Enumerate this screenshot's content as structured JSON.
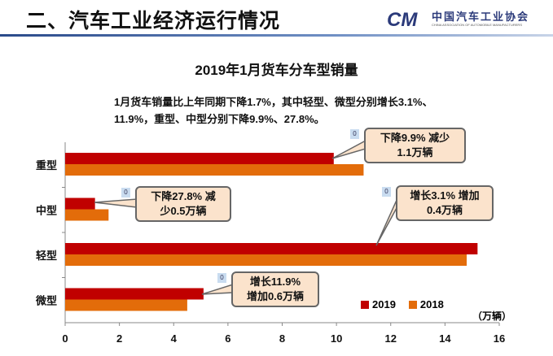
{
  "header": {
    "title": "二、汽车工业经济运行情况",
    "logo_text": "中国汽车工业协会",
    "logo_subtext": "CHINA ASSOCIATION OF AUTOMOBILE MANUFACTURERS",
    "logo_mark": "CM"
  },
  "summary": [
    "1月货车销量比上年同期下降1.7%，其中轻型、微型分别增长3.1%、",
    "11.9%，重型、中型分别下降9.9%、27.8%。"
  ],
  "chart_data": {
    "type": "bar",
    "orientation": "horizontal",
    "title": "2019年1月货车分车型销量",
    "categories": [
      "重型",
      "中型",
      "轻型",
      "微型"
    ],
    "series": [
      {
        "name": "2019",
        "color": "#c00000",
        "values": [
          9.9,
          1.1,
          15.2,
          5.1
        ]
      },
      {
        "name": "2018",
        "color": "#e36c0a",
        "values": [
          11.0,
          1.6,
          14.8,
          4.5
        ]
      }
    ],
    "xlim": [
      0,
      16
    ],
    "xticks": [
      0,
      2,
      4,
      6,
      8,
      10,
      12,
      14,
      16
    ],
    "unit": "（万辆）",
    "legend": "bottom-right",
    "annotations": [
      {
        "lines": [
          "下降9.9% 减少",
          "1.1万辆"
        ],
        "marker": "0"
      },
      {
        "lines": [
          "下降27.8% 减",
          "少0.5万辆"
        ],
        "marker": "0"
      },
      {
        "lines": [
          "增长3.1% 增加",
          "0.4万辆"
        ],
        "marker": "0"
      },
      {
        "lines": [
          "增长11.9%",
          "增加0.6万辆"
        ],
        "marker": "0"
      }
    ]
  }
}
